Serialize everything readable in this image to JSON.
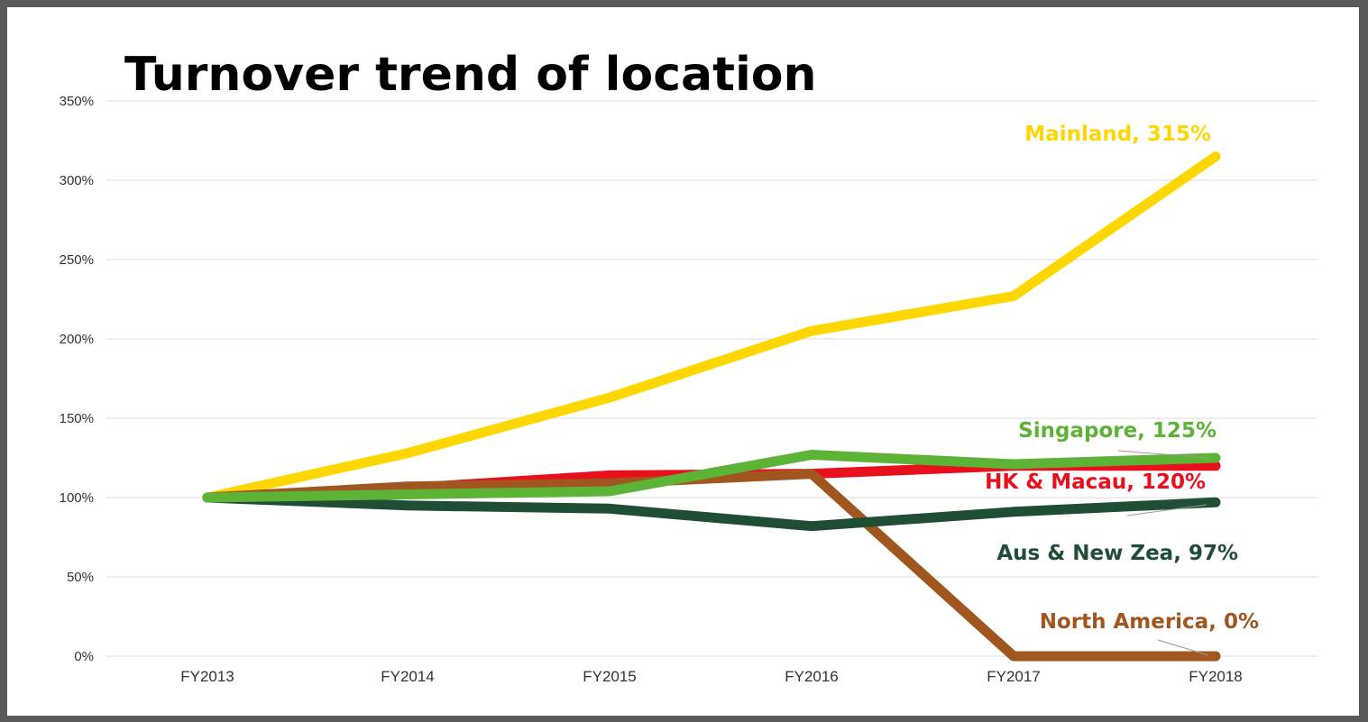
{
  "chart_data": {
    "type": "line",
    "title": "Turnover trend of location",
    "xlabel": "",
    "ylabel": "",
    "categories": [
      "FY2013",
      "FY2014",
      "FY2015",
      "FY2016",
      "FY2017",
      "FY2018"
    ],
    "yticks": [
      "0%",
      "50%",
      "100%",
      "150%",
      "200%",
      "250%",
      "300%",
      "350%"
    ],
    "ylim": [
      0,
      350
    ],
    "grid": true,
    "legend": "none",
    "series": [
      {
        "name": "Mainland",
        "color": "#FFD700",
        "values": [
          100,
          128,
          163,
          205,
          227,
          315
        ],
        "label": "Mainland, 315%"
      },
      {
        "name": "HK & Macau",
        "color": "#E8101C",
        "values": [
          100,
          106,
          114,
          115,
          120,
          120
        ],
        "label": "HK & Macau, 120%"
      },
      {
        "name": "North America",
        "color": "#A0561E",
        "values": [
          100,
          107,
          109,
          115,
          0,
          0
        ],
        "label": "North America, 0%"
      },
      {
        "name": "Aus & New Zea",
        "color": "#1F4E35",
        "values": [
          100,
          95,
          93,
          82,
          91,
          97
        ],
        "label": "Aus & New Zea, 97%"
      },
      {
        "name": "Singapore",
        "color": "#5DB336",
        "values": [
          100,
          102,
          104,
          127,
          121,
          125
        ],
        "label": "Singapore, 125%"
      }
    ]
  }
}
